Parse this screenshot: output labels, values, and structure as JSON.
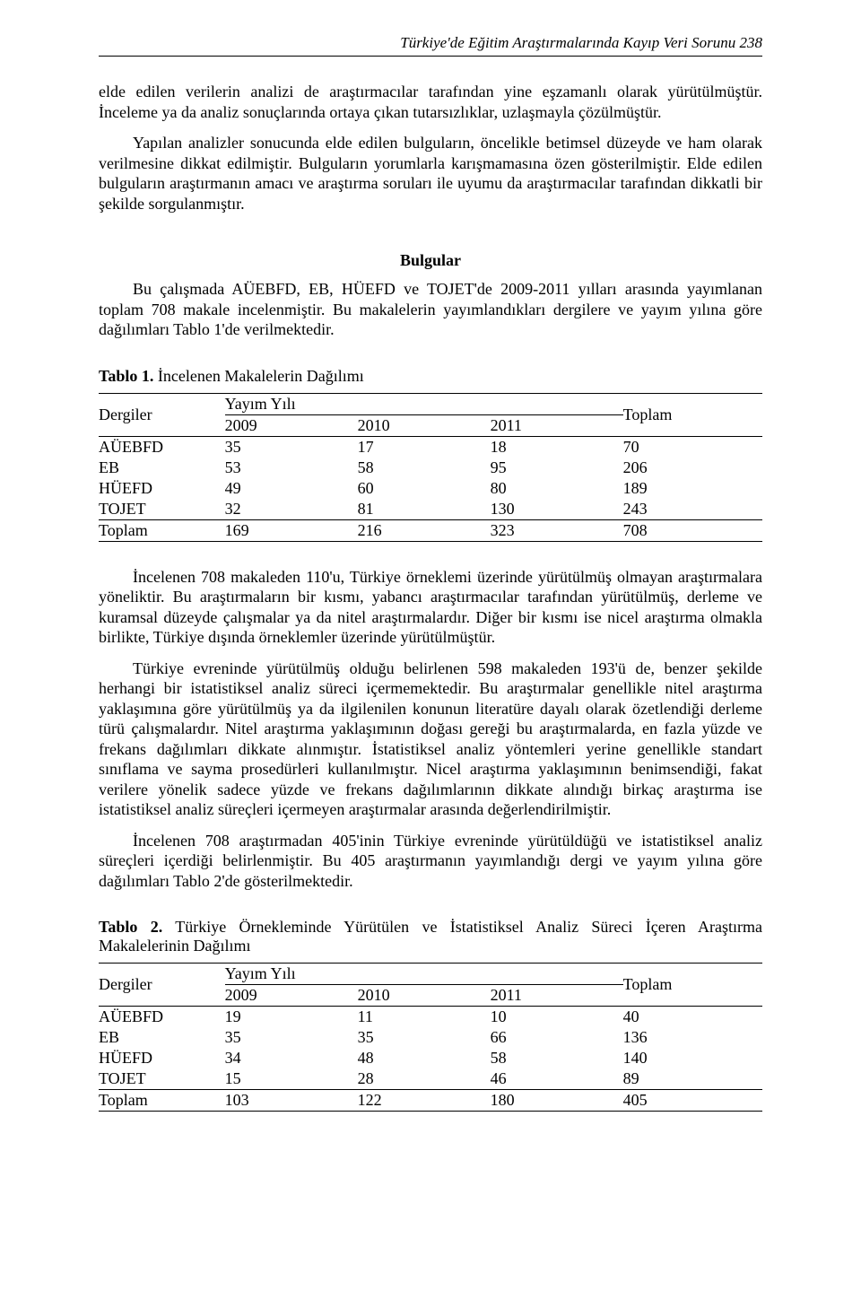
{
  "header": {
    "running_title": "Türkiye'de Eğitim Araştırmalarında Kayıp Veri Sorunu 238"
  },
  "paragraphs": {
    "p1": "elde edilen verilerin analizi de araştırmacılar tarafından yine eşzamanlı olarak yürütülmüştür. İnceleme ya da analiz sonuçlarında ortaya çıkan tutarsızlıklar, uzlaşmayla çözülmüştür.",
    "p2": "Yapılan analizler sonucunda elde edilen bulguların, öncelikle betimsel düzeyde ve ham olarak verilmesine dikkat edilmiştir. Bulguların yorumlarla karışmamasına özen gösterilmiştir. Elde edilen bulguların araştırmanın amacı ve araştırma soruları ile uyumu da araştırmacılar tarafından dikkatli bir şekilde sorgulanmıştır.",
    "bulgular_heading": "Bulgular",
    "p3": "Bu çalışmada AÜEBFD, EB, HÜEFD ve TOJET'de 2009-2011 yılları arasında yayımlanan toplam 708 makale incelenmiştir. Bu makalelerin yayımlandıkları dergilere ve yayım yılına göre dağılımları Tablo 1'de verilmektedir.",
    "p4": "İncelenen 708 makaleden 110'u, Türkiye örneklemi üzerinde yürütülmüş olmayan araştırmalara yöneliktir. Bu araştırmaların bir kısmı, yabancı araştırmacılar tarafından yürütülmüş, derleme ve kuramsal düzeyde çalışmalar ya da nitel araştırmalardır. Diğer bir kısmı ise nicel araştırma olmakla birlikte, Türkiye dışında örneklemler üzerinde yürütülmüştür.",
    "p5": "Türkiye evreninde yürütülmüş olduğu belirlenen 598 makaleden 193'ü de, benzer şekilde herhangi bir istatistiksel analiz süreci içermemektedir. Bu araştırmalar genellikle nitel araştırma yaklaşımına göre yürütülmüş ya da ilgilenilen konunun literatüre dayalı olarak özetlendiği derleme türü çalışmalardır. Nitel araştırma yaklaşımının doğası gereği bu araştırmalarda, en fazla yüzde ve frekans dağılımları dikkate alınmıştır. İstatistiksel analiz yöntemleri yerine genellikle standart sınıflama ve sayma prosedürleri kullanılmıştır. Nicel araştırma yaklaşımının benimsendiği, fakat verilere yönelik sadece yüzde ve frekans dağılımlarının dikkate alındığı birkaç araştırma ise istatistiksel analiz süreçleri içermeyen araştırmalar arasında değerlendirilmiştir.",
    "p6": "İncelenen 708 araştırmadan 405'inin Türkiye evreninde yürütüldüğü ve istatistiksel analiz süreçleri içerdiği belirlenmiştir. Bu 405 araştırmanın yayımlandığı dergi ve yayım yılına göre dağılımları Tablo 2'de gösterilmektedir."
  },
  "table1": {
    "caption_label": "Tablo 1.",
    "caption_text": " İncelenen Makalelerin Dağılımı",
    "col_dergiler": "Dergiler",
    "col_yayim_yili": "Yayım Yılı",
    "col_toplam": "Toplam",
    "years": {
      "y2009": "2009",
      "y2010": "2010",
      "y2011": "2011"
    },
    "rows": {
      "r0": {
        "name": "AÜEBFD",
        "v2009": "35",
        "v2010": "17",
        "v2011": "18",
        "total": "70"
      },
      "r1": {
        "name": "EB",
        "v2009": "53",
        "v2010": "58",
        "v2011": "95",
        "total": "206"
      },
      "r2": {
        "name": "HÜEFD",
        "v2009": "49",
        "v2010": "60",
        "v2011": "80",
        "total": "189"
      },
      "r3": {
        "name": "TOJET",
        "v2009": "32",
        "v2010": "81",
        "v2011": "130",
        "total": "243"
      },
      "r4": {
        "name": "Toplam",
        "v2009": "169",
        "v2010": "216",
        "v2011": "323",
        "total": "708"
      }
    }
  },
  "table2": {
    "caption_label": "Tablo 2.",
    "caption_text": " Türkiye Örnekleminde Yürütülen ve İstatistiksel Analiz Süreci İçeren Araştırma Makalelerinin Dağılımı",
    "col_dergiler": "Dergiler",
    "col_yayim_yili": "Yayım Yılı",
    "col_toplam": "Toplam",
    "years": {
      "y2009": "2009",
      "y2010": "2010",
      "y2011": "2011"
    },
    "rows": {
      "r0": {
        "name": "AÜEBFD",
        "v2009": "19",
        "v2010": "11",
        "v2011": "10",
        "total": "40"
      },
      "r1": {
        "name": "EB",
        "v2009": "35",
        "v2010": "35",
        "v2011": "66",
        "total": "136"
      },
      "r2": {
        "name": "HÜEFD",
        "v2009": "34",
        "v2010": "48",
        "v2011": "58",
        "total": "140"
      },
      "r3": {
        "name": "TOJET",
        "v2009": "15",
        "v2010": "28",
        "v2011": "46",
        "total": "89"
      },
      "r4": {
        "name": "Toplam",
        "v2009": "103",
        "v2010": "122",
        "v2011": "180",
        "total": "405"
      }
    }
  }
}
